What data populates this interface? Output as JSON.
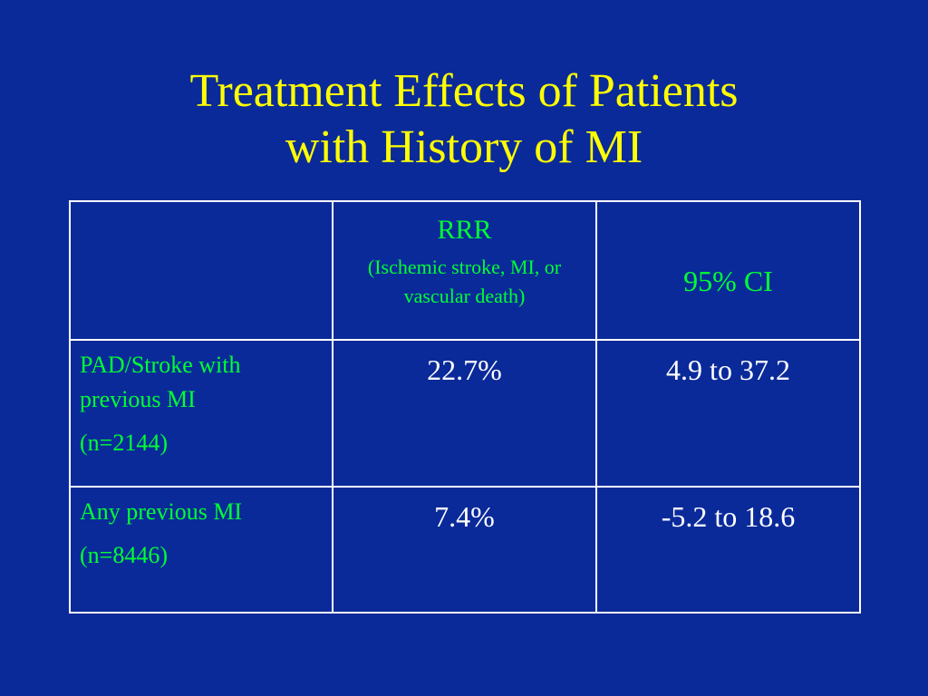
{
  "slide": {
    "background": "#0a2a9a",
    "title_color": "#ffff00",
    "accent_color": "#00ff33",
    "title_line1": "Treatment Effects of Patients",
    "title_line2": "with History of MI"
  },
  "table": {
    "header": {
      "col2_label": "RRR",
      "col2_sublabel": "(Ischemic stroke, MI, or vascular death)",
      "col3_label": "95% CI"
    },
    "rows": [
      {
        "label_line1": "PAD/Stroke with previous MI",
        "label_n": "(n=2144)",
        "rrr": "22.7%",
        "ci": "4.9 to 37.2"
      },
      {
        "label_line1": "Any previous MI",
        "label_n": "(n=8446)",
        "rrr": "7.4%",
        "ci": "-5.2 to 18.6"
      }
    ]
  }
}
